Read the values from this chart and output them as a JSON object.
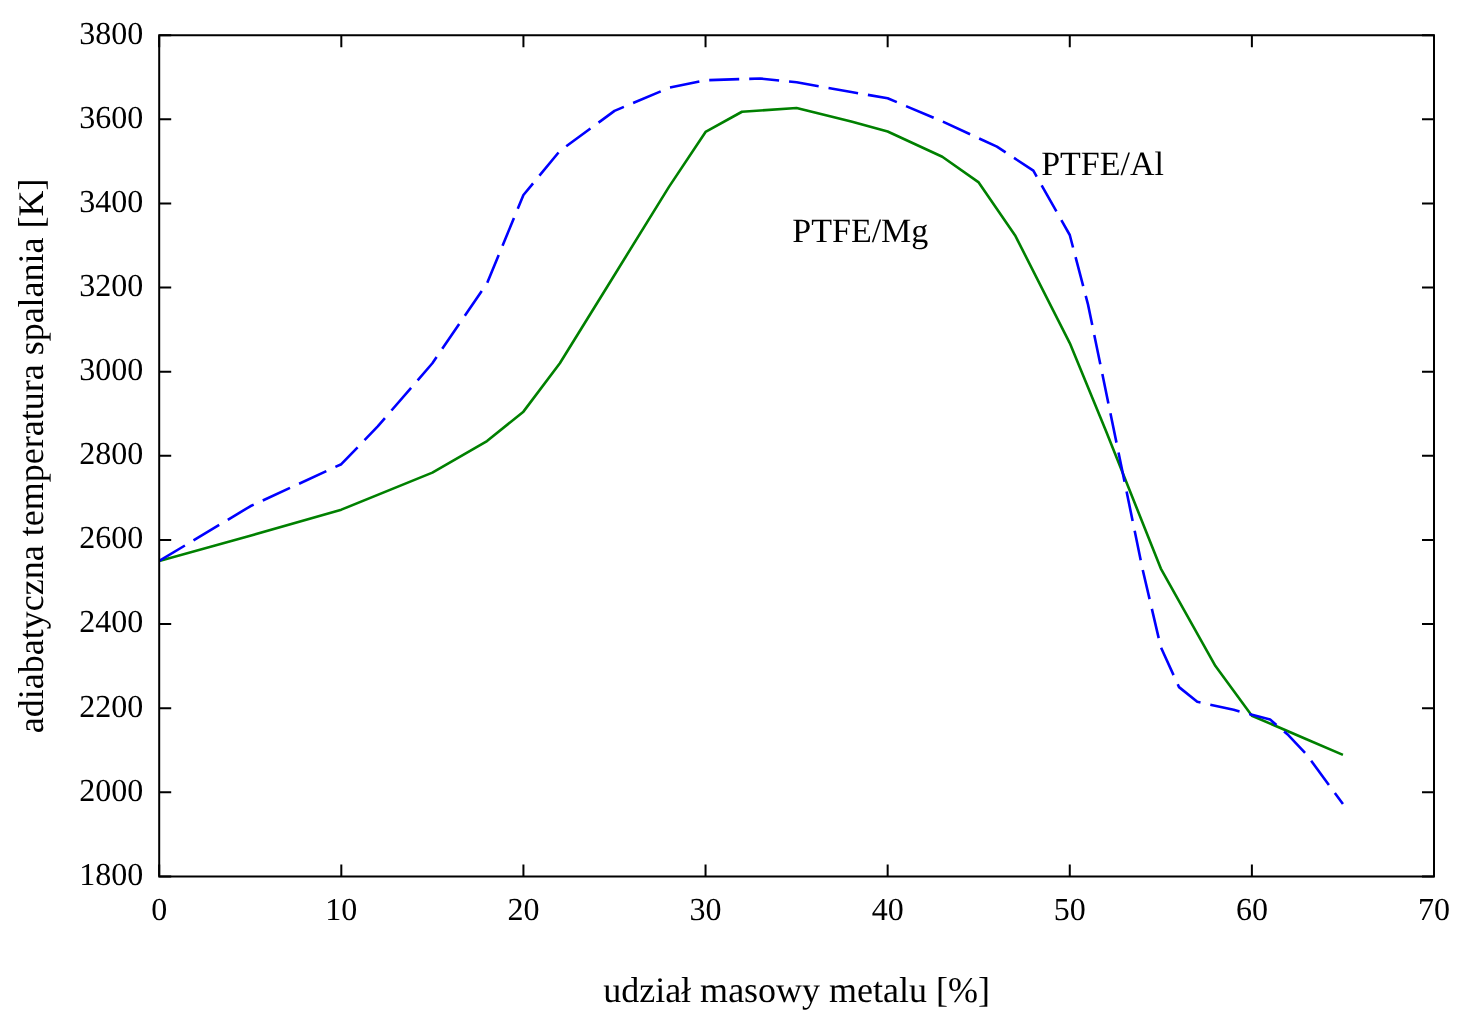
{
  "chart_data": {
    "type": "line",
    "xlabel": "udział masowy metalu [%]",
    "ylabel": "adiabatyczna temperatura spalania [K]",
    "xlim": [
      0,
      70
    ],
    "xticks": [
      0,
      10,
      20,
      30,
      40,
      50,
      60,
      70
    ],
    "ylim": [
      1800,
      3800
    ],
    "yticks": [
      1800,
      2000,
      2200,
      2400,
      2600,
      2800,
      3000,
      3200,
      3400,
      3600,
      3800
    ],
    "grid": false,
    "legend": false,
    "marker": "none",
    "series": [
      {
        "name": "PTFE/Al",
        "color": "#0000ff",
        "line_style": "dashed",
        "x": [
          0,
          5,
          10,
          12,
          15,
          18,
          20,
          22,
          25,
          28,
          30,
          33,
          35,
          38,
          40,
          43,
          46,
          48,
          50,
          51,
          52,
          53,
          54,
          55,
          56,
          57,
          59,
          61,
          62,
          63,
          65
        ],
        "values": [
          2550,
          2680,
          2780,
          2870,
          3020,
          3210,
          3420,
          3525,
          3620,
          3675,
          3693,
          3697,
          3688,
          3665,
          3650,
          3595,
          3535,
          3478,
          3325,
          3160,
          2950,
          2740,
          2530,
          2345,
          2250,
          2215,
          2196,
          2173,
          2136,
          2090,
          1972
        ]
      },
      {
        "name": "PTFE/Mg",
        "color": "#008000",
        "line_style": "solid",
        "x": [
          0,
          5,
          10,
          15,
          18,
          20,
          22,
          25,
          28,
          30,
          32,
          35,
          38,
          40,
          43,
          45,
          47,
          50,
          52,
          55,
          58,
          60,
          63,
          65
        ],
        "values": [
          2550,
          2610,
          2672,
          2760,
          2835,
          2905,
          3020,
          3230,
          3440,
          3570,
          3618,
          3627,
          3595,
          3571,
          3511,
          3450,
          3324,
          3068,
          2858,
          2532,
          2300,
          2182,
          2126,
          2089
        ]
      }
    ]
  }
}
